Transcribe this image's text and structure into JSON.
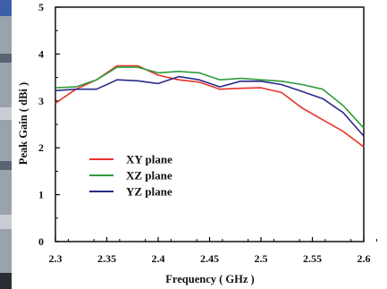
{
  "chart_data": {
    "type": "line",
    "title": "",
    "xlabel": "Frequency ( GHz )",
    "ylabel": "Peak Gain ( dBi )",
    "xlim": [
      2.3,
      2.6
    ],
    "ylim": [
      0,
      5
    ],
    "xticks": [
      "2.3",
      "2.35",
      "2.4",
      "2.45",
      "2.5",
      "2.55",
      "2.6"
    ],
    "yticks": [
      "0",
      "1",
      "2",
      "3",
      "4",
      "5"
    ],
    "grid": false,
    "legend_position": "bottom-left",
    "series": [
      {
        "name": "XY plane",
        "color": "#e8332a",
        "x": [
          2.3,
          2.32,
          2.34,
          2.36,
          2.38,
          2.4,
          2.42,
          2.44,
          2.46,
          2.48,
          2.5,
          2.52,
          2.54,
          2.56,
          2.58,
          2.6
        ],
        "y": [
          2.95,
          3.25,
          3.45,
          3.75,
          3.75,
          3.55,
          3.45,
          3.4,
          3.25,
          3.27,
          3.28,
          3.18,
          2.85,
          2.6,
          2.35,
          2.02
        ]
      },
      {
        "name": "XZ plane",
        "color": "#2e9a3c",
        "x": [
          2.3,
          2.32,
          2.34,
          2.36,
          2.38,
          2.4,
          2.42,
          2.44,
          2.46,
          2.48,
          2.5,
          2.52,
          2.54,
          2.56,
          2.58,
          2.6
        ],
        "y": [
          3.28,
          3.3,
          3.45,
          3.72,
          3.72,
          3.6,
          3.63,
          3.6,
          3.45,
          3.48,
          3.45,
          3.42,
          3.35,
          3.25,
          2.9,
          2.42
        ]
      },
      {
        "name": "YZ plane",
        "color": "#2a2a8a",
        "x": [
          2.3,
          2.32,
          2.34,
          2.36,
          2.38,
          2.4,
          2.42,
          2.44,
          2.46,
          2.48,
          2.5,
          2.52,
          2.54,
          2.56,
          2.58,
          2.6
        ],
        "y": [
          3.22,
          3.25,
          3.25,
          3.45,
          3.43,
          3.37,
          3.52,
          3.45,
          3.3,
          3.42,
          3.42,
          3.35,
          3.2,
          3.05,
          2.75,
          2.25
        ]
      }
    ]
  }
}
